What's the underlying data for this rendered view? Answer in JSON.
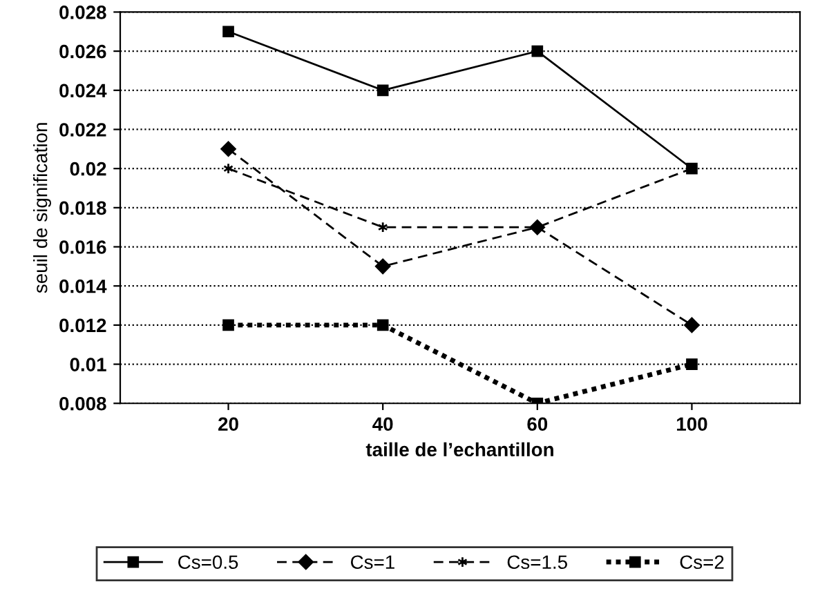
{
  "chart_data": {
    "type": "line",
    "xlabel": "taille de l’echantillon",
    "ylabel": "seuil de signification",
    "categories": [
      "20",
      "40",
      "60",
      "100"
    ],
    "series": [
      {
        "name": "Cs=0.5",
        "color": "#000000",
        "values": [
          0.027,
          0.024,
          0.026,
          0.02
        ],
        "marker": "square",
        "line_style": "solid"
      },
      {
        "name": "Cs=1",
        "color": "#000000",
        "values": [
          0.021,
          0.015,
          0.017,
          0.012
        ],
        "marker": "diamond",
        "line_style": "dashed"
      },
      {
        "name": "Cs=1.5",
        "color": "#000000",
        "values": [
          0.02,
          0.017,
          0.017,
          0.02
        ],
        "marker": "cross",
        "line_style": "dashed"
      },
      {
        "name": "Cs=2",
        "color": "#000000",
        "values": [
          0.012,
          0.012,
          0.008,
          0.01
        ],
        "marker": "square",
        "line_style": "dotted"
      }
    ],
    "ylim": [
      0.008,
      0.028
    ],
    "yticks": [
      0.008,
      0.01,
      0.012,
      0.014,
      0.016,
      0.018,
      0.02,
      0.022,
      0.024,
      0.026,
      0.028
    ],
    "grid": "y",
    "legend": "bottom"
  }
}
